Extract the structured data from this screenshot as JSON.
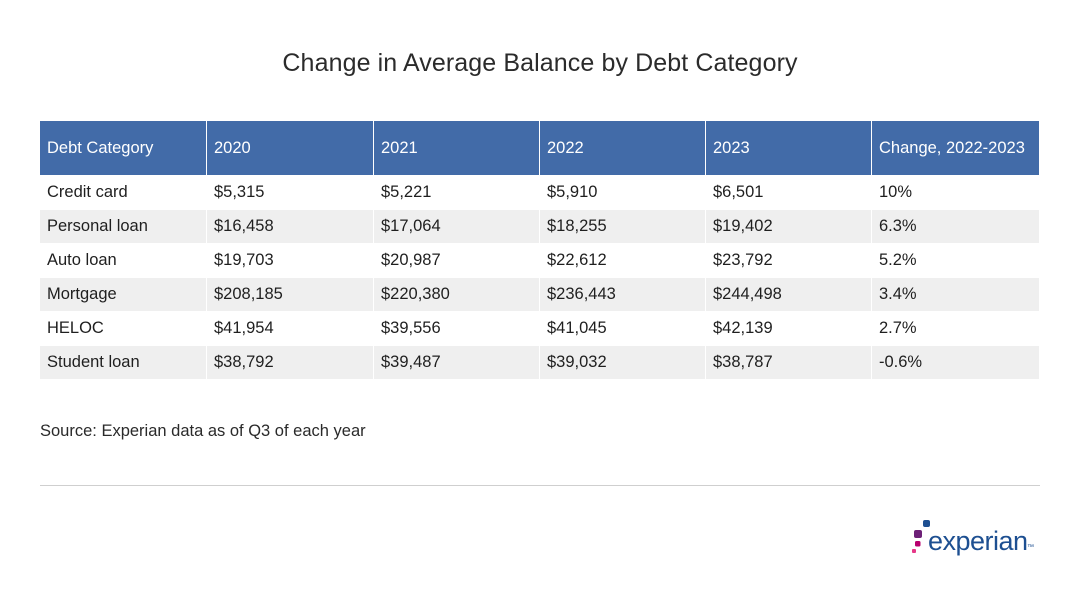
{
  "chart_data": {
    "type": "table",
    "title": "Change in Average Balance by Debt Category",
    "columns": [
      "Debt Category",
      "2020",
      "2021",
      "2022",
      "2023",
      "Change, 2022-2023"
    ],
    "rows": [
      [
        "Credit card",
        "$5,315",
        "$5,221",
        "$5,910",
        "$6,501",
        "10%"
      ],
      [
        "Personal loan",
        "$16,458",
        "$17,064",
        "$18,255",
        "$19,402",
        "6.3%"
      ],
      [
        "Auto loan",
        "$19,703",
        "$20,987",
        "$22,612",
        "$23,792",
        "5.2%"
      ],
      [
        "Mortgage",
        "$208,185",
        "$220,380",
        "$236,443",
        "$244,498",
        "3.4%"
      ],
      [
        "HELOC",
        "$41,954",
        "$39,556",
        "$41,045",
        "$42,139",
        "2.7%"
      ],
      [
        "Student loan",
        "$38,792",
        "$39,487",
        "$39,032",
        "$38,787",
        "-0.6%"
      ]
    ],
    "header_color": "#426ba8",
    "stripe_color": "#efefef"
  },
  "source": "Source: Experian data as of Q3 of each year",
  "logo": {
    "text": "experian",
    "trademark": "™",
    "brand_color": "#1d4f91",
    "dot_colors": [
      "#1d4f91",
      "#6d2077",
      "#b7006e",
      "#e63888"
    ]
  }
}
